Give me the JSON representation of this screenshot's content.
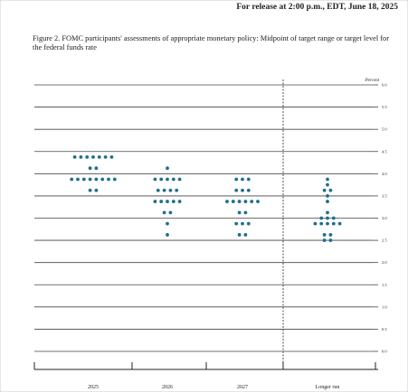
{
  "header": "For release at 2:00 p.m., EDT, June 18, 2025",
  "chart_data": {
    "type": "dot",
    "title": "Figure 2.  FOMC participants' assessments of appropriate monetary policy:  Midpoint of target range or target level for the federal funds rate",
    "y_label": "Percent",
    "categories": [
      "2025",
      "2026",
      "2027",
      "Longer run"
    ],
    "values": [
      [
        4.375,
        4.375,
        4.375,
        4.375,
        4.375,
        4.375,
        4.375,
        4.125,
        4.125,
        3.875,
        3.875,
        3.875,
        3.875,
        3.875,
        3.875,
        3.875,
        3.875,
        3.625,
        3.625
      ],
      [
        4.125,
        3.875,
        3.875,
        3.875,
        3.875,
        3.875,
        3.625,
        3.625,
        3.625,
        3.625,
        3.375,
        3.375,
        3.375,
        3.375,
        3.375,
        3.125,
        3.125,
        2.875,
        2.625
      ],
      [
        3.875,
        3.875,
        3.875,
        3.625,
        3.625,
        3.625,
        3.375,
        3.375,
        3.375,
        3.375,
        3.375,
        3.375,
        3.125,
        3.125,
        2.875,
        2.875,
        2.875,
        2.625,
        2.625
      ],
      [
        3.875,
        3.75,
        3.625,
        3.625,
        3.5,
        3.375,
        3.125,
        3,
        3,
        3,
        2.875,
        2.875,
        2.875,
        2.875,
        2.875,
        2.625,
        2.625,
        2.5,
        2.5
      ]
    ],
    "color": "#1f6f8b",
    "ylim": [
      0,
      6
    ],
    "yticks": [
      {
        "value": 0,
        "label": "0.0"
      },
      0.5,
      {
        "value": 1,
        "label": "1.0"
      },
      1.5,
      {
        "value": 2,
        "label": "2.0"
      },
      2.5,
      {
        "value": 3,
        "label": "3.0"
      },
      3.5,
      {
        "value": 4,
        "label": "4.0"
      },
      4.5,
      {
        "value": 5,
        "label": "5.0"
      },
      5.5,
      {
        "value": 6,
        "label": "6.0"
      }
    ],
    "grid": true
  }
}
